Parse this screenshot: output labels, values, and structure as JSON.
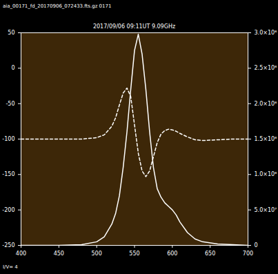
{
  "chart_data": {
    "type": "line",
    "title": "2017/09/06 09:11UT 9.09GHz",
    "annotations": [
      "aia_00171_fd_20170906_072433.fts.gz 0171",
      "I/V= 4"
    ],
    "x": [
      400,
      450,
      480,
      500,
      510,
      520,
      525,
      530,
      535,
      540,
      545,
      550,
      555,
      560,
      565,
      570,
      575,
      580,
      585,
      590,
      595,
      600,
      605,
      610,
      620,
      630,
      640,
      660,
      680,
      700
    ],
    "series": [
      {
        "color": "#ffffff",
        "line_style": "solid",
        "axis": "y2",
        "values": [
          0,
          0,
          1000000.0,
          5000000.0,
          12000000.0,
          30000000.0,
          45000000.0,
          70000000.0,
          110000000.0,
          160000000.0,
          220000000.0,
          275000000.0,
          298000000.0,
          270000000.0,
          220000000.0,
          160000000.0,
          110000000.0,
          80000000.0,
          68000000.0,
          60000000.0,
          55000000.0,
          50000000.0,
          43000000.0,
          33000000.0,
          18000000.0,
          9000000.0,
          5000000.0,
          2000000.0,
          1000000.0,
          0
        ]
      },
      {
        "color": "#ffffff",
        "line_style": "dashed",
        "axis": "y2",
        "values": [
          150000000.0,
          150000000.0,
          150000000.0,
          152000000.0,
          156000000.0,
          168000000.0,
          180000000.0,
          198000000.0,
          215000000.0,
          222000000.0,
          210000000.0,
          170000000.0,
          130000000.0,
          105000000.0,
          97000000.0,
          105000000.0,
          125000000.0,
          145000000.0,
          157000000.0,
          162000000.0,
          164000000.0,
          163000000.0,
          161000000.0,
          158000000.0,
          153000000.0,
          149000000.0,
          148000000.0,
          149000000.0,
          150000000.0,
          150000000.0
        ]
      }
    ],
    "xlim": [
      400,
      700
    ],
    "xticks": [
      400,
      450,
      500,
      550,
      600,
      650,
      700
    ],
    "ylim": [
      -250,
      50
    ],
    "yticks": [
      -250,
      -200,
      -150,
      -100,
      -50,
      0,
      50
    ],
    "y2lim": [
      0,
      300000000.0
    ],
    "y2ticks": [
      0,
      {
        "value": 50000000.0,
        "label": "5.0×10⁷"
      },
      {
        "value": 100000000.0,
        "label": "1.0×10⁸"
      },
      {
        "value": 150000000.0,
        "label": "1.5×10⁸"
      },
      {
        "value": 200000000.0,
        "label": "2.0×10⁸"
      },
      {
        "value": 250000000.0,
        "label": "2.5×10⁸"
      },
      {
        "value": 300000000.0,
        "label": "3.0×10⁸"
      }
    ],
    "grid": false
  }
}
